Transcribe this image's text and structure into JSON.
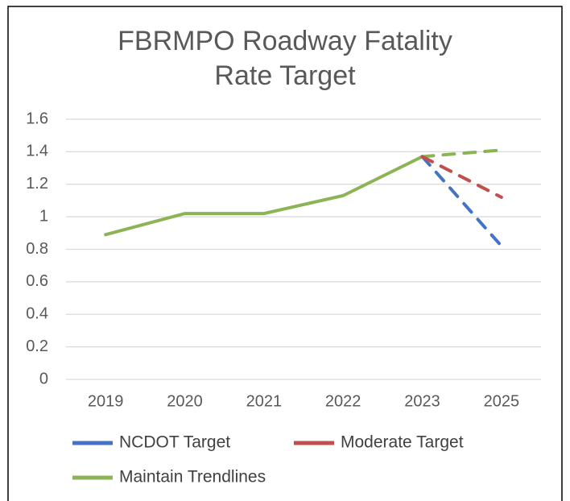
{
  "chart_data": {
    "type": "line",
    "title": "FBRMPO Roadway Fatality Rate Target",
    "categories": [
      "2019",
      "2020",
      "2021",
      "2022",
      "2023",
      "2025"
    ],
    "series": [
      {
        "name": "NCDOT Target",
        "color": "#4472c4",
        "dashed_from": 0,
        "values": [
          null,
          null,
          null,
          null,
          1.37,
          0.82
        ]
      },
      {
        "name": "Moderate Target",
        "color": "#c0504d",
        "dashed_from": 0,
        "values": [
          null,
          null,
          null,
          null,
          1.37,
          1.12
        ]
      },
      {
        "name": "Maintain Trendlines",
        "color": "#8db357",
        "dashed_from": 4,
        "values": [
          0.89,
          1.02,
          1.02,
          1.13,
          1.37,
          1.41
        ]
      }
    ],
    "ylim": [
      0,
      1.6
    ],
    "yticks": [
      0,
      0.2,
      0.4,
      0.6,
      0.8,
      1,
      1.2,
      1.4,
      1.6
    ],
    "grid": true,
    "legend": "bottom"
  }
}
